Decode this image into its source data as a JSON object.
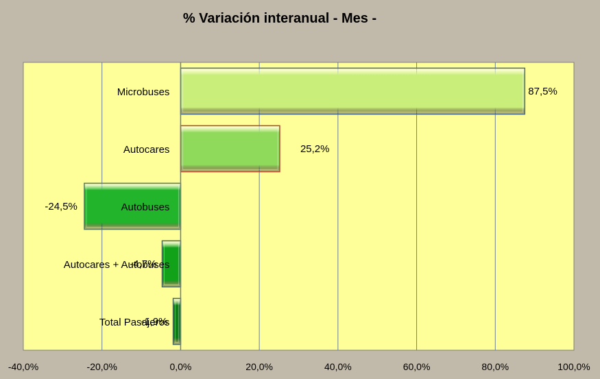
{
  "chart_data": {
    "type": "bar",
    "orientation": "horizontal",
    "title": "% Variación interanual - Mes -",
    "categories": [
      "Microbuses",
      "Autocares",
      "Autobuses",
      "Autocares + Autobuses",
      "Total Pasajeros"
    ],
    "values": [
      87.5,
      25.2,
      -24.5,
      -4.7,
      -1.9
    ],
    "value_labels": [
      "87,5%",
      "25,2%",
      "-24,5%",
      "-4,7%",
      "-1,9%"
    ],
    "xlim": [
      -40,
      100
    ],
    "x_ticks": [
      -40,
      -20,
      0,
      20,
      40,
      60,
      80,
      100
    ],
    "x_tick_labels": [
      "-40,0%",
      "-20,0%",
      "0,0%",
      "20,0%",
      "40,0%",
      "60,0%",
      "80,0%",
      "100,0%"
    ],
    "xlabel": "",
    "ylabel": "",
    "grid": true,
    "legend": "none",
    "colors": {
      "page_background": "#c1b9a9",
      "plot_background": "#ffff99",
      "bars": [
        "#c9ee7a",
        "#8fd95b",
        "#22b52c",
        "#11a21a",
        "#0b7d12"
      ],
      "bar_edges": [
        "#4a6a8a",
        "#b24a2a",
        "#5a7a5a",
        "#4a6a5a",
        "#4a6a5a"
      ]
    }
  }
}
